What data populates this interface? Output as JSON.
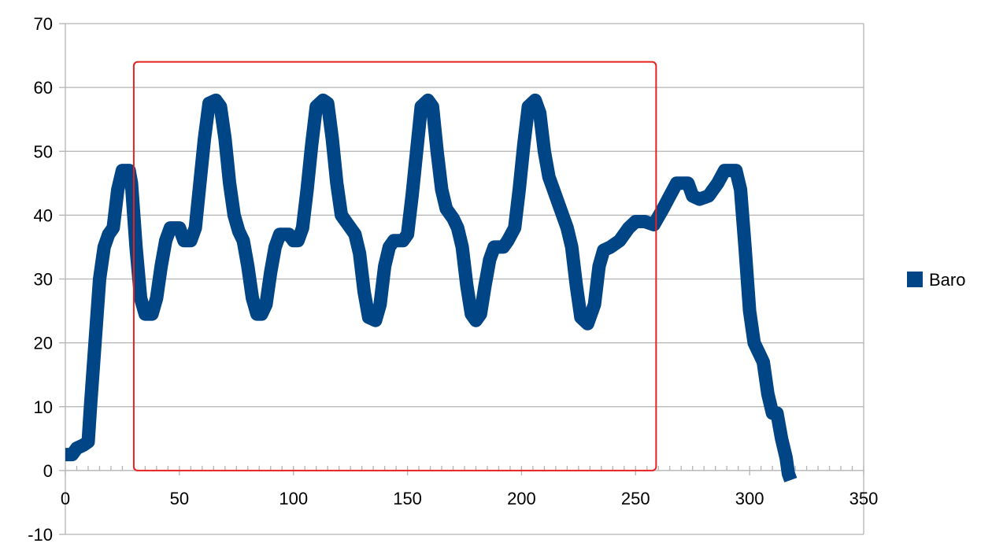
{
  "chart_data": {
    "type": "line",
    "title": "",
    "xlabel": "",
    "ylabel": "",
    "xlim": [
      0,
      350
    ],
    "ylim": [
      -10,
      70
    ],
    "x_ticks": [
      0,
      50,
      100,
      150,
      200,
      250,
      300,
      350
    ],
    "y_ticks": [
      -10,
      0,
      10,
      20,
      30,
      40,
      50,
      60,
      70
    ],
    "grid": true,
    "legend": "right",
    "series": [
      {
        "name": "Baro",
        "color": "#004586",
        "points": [
          [
            0,
            2.5
          ],
          [
            3,
            2.5
          ],
          [
            5,
            3.5
          ],
          [
            8,
            4
          ],
          [
            10,
            4.5
          ],
          [
            11,
            10
          ],
          [
            13,
            20
          ],
          [
            15,
            30
          ],
          [
            17,
            35
          ],
          [
            19,
            37
          ],
          [
            21,
            38
          ],
          [
            23,
            44
          ],
          [
            25,
            47
          ],
          [
            28,
            47
          ],
          [
            29,
            45
          ],
          [
            31,
            35
          ],
          [
            33,
            27
          ],
          [
            35,
            24.5
          ],
          [
            38,
            24.5
          ],
          [
            40,
            27
          ],
          [
            42,
            32
          ],
          [
            44,
            36
          ],
          [
            46,
            38
          ],
          [
            50,
            38
          ],
          [
            52,
            36
          ],
          [
            55,
            36
          ],
          [
            57,
            38
          ],
          [
            59,
            45
          ],
          [
            61,
            52
          ],
          [
            63,
            57.5
          ],
          [
            66,
            58
          ],
          [
            68,
            57
          ],
          [
            70,
            52
          ],
          [
            72,
            45
          ],
          [
            74,
            40
          ],
          [
            76,
            37.5
          ],
          [
            78,
            36
          ],
          [
            80,
            32
          ],
          [
            82,
            27
          ],
          [
            84,
            24.5
          ],
          [
            86,
            24.5
          ],
          [
            88,
            26
          ],
          [
            90,
            31
          ],
          [
            92,
            35
          ],
          [
            94,
            37
          ],
          [
            98,
            37
          ],
          [
            100,
            36
          ],
          [
            102,
            36
          ],
          [
            104,
            38
          ],
          [
            106,
            44
          ],
          [
            108,
            51
          ],
          [
            110,
            57
          ],
          [
            113,
            58
          ],
          [
            115,
            57.5
          ],
          [
            117,
            52
          ],
          [
            119,
            45
          ],
          [
            121,
            40
          ],
          [
            124,
            38.5
          ],
          [
            127,
            37
          ],
          [
            129,
            34
          ],
          [
            131,
            28
          ],
          [
            133,
            24
          ],
          [
            136,
            23.5
          ],
          [
            138,
            26
          ],
          [
            140,
            32
          ],
          [
            142,
            35
          ],
          [
            144,
            36
          ],
          [
            148,
            36
          ],
          [
            150,
            37
          ],
          [
            152,
            43
          ],
          [
            154,
            50
          ],
          [
            156,
            57
          ],
          [
            159,
            58
          ],
          [
            161,
            57
          ],
          [
            163,
            50
          ],
          [
            165,
            44
          ],
          [
            167,
            41
          ],
          [
            170,
            39.5
          ],
          [
            172,
            38
          ],
          [
            174,
            35
          ],
          [
            176,
            29
          ],
          [
            178,
            24.5
          ],
          [
            180,
            23.5
          ],
          [
            182,
            24.5
          ],
          [
            184,
            29
          ],
          [
            186,
            33
          ],
          [
            188,
            35
          ],
          [
            192,
            35
          ],
          [
            194,
            36
          ],
          [
            197,
            38
          ],
          [
            199,
            44
          ],
          [
            201,
            51
          ],
          [
            203,
            57
          ],
          [
            206,
            58
          ],
          [
            208,
            56
          ],
          [
            210,
            50
          ],
          [
            212,
            46
          ],
          [
            214,
            44
          ],
          [
            216,
            42
          ],
          [
            218,
            40
          ],
          [
            220,
            38
          ],
          [
            222,
            35
          ],
          [
            224,
            29
          ],
          [
            226,
            24
          ],
          [
            229,
            23
          ],
          [
            232,
            26
          ],
          [
            234,
            32
          ],
          [
            236,
            34.5
          ],
          [
            239,
            35
          ],
          [
            243,
            36
          ],
          [
            247,
            38
          ],
          [
            250,
            39
          ],
          [
            254,
            39
          ],
          [
            258,
            38.5
          ],
          [
            262,
            41
          ],
          [
            265,
            43
          ],
          [
            268,
            45
          ],
          [
            273,
            45
          ],
          [
            275,
            43
          ],
          [
            278,
            42.5
          ],
          [
            282,
            43
          ],
          [
            286,
            45
          ],
          [
            289,
            47
          ],
          [
            294,
            47
          ],
          [
            296,
            44
          ],
          [
            298,
            35
          ],
          [
            300,
            25
          ],
          [
            302,
            20
          ],
          [
            304,
            18.5
          ],
          [
            306,
            17
          ],
          [
            308,
            12
          ],
          [
            310,
            9
          ],
          [
            312,
            9
          ],
          [
            314,
            5
          ],
          [
            316,
            2
          ],
          [
            317,
            -0.5
          ],
          [
            318,
            -1.5
          ]
        ]
      }
    ],
    "annotation": {
      "shape": "rectangle",
      "color": "#e52220",
      "x": [
        30,
        259
      ],
      "y": [
        0,
        64
      ]
    }
  }
}
